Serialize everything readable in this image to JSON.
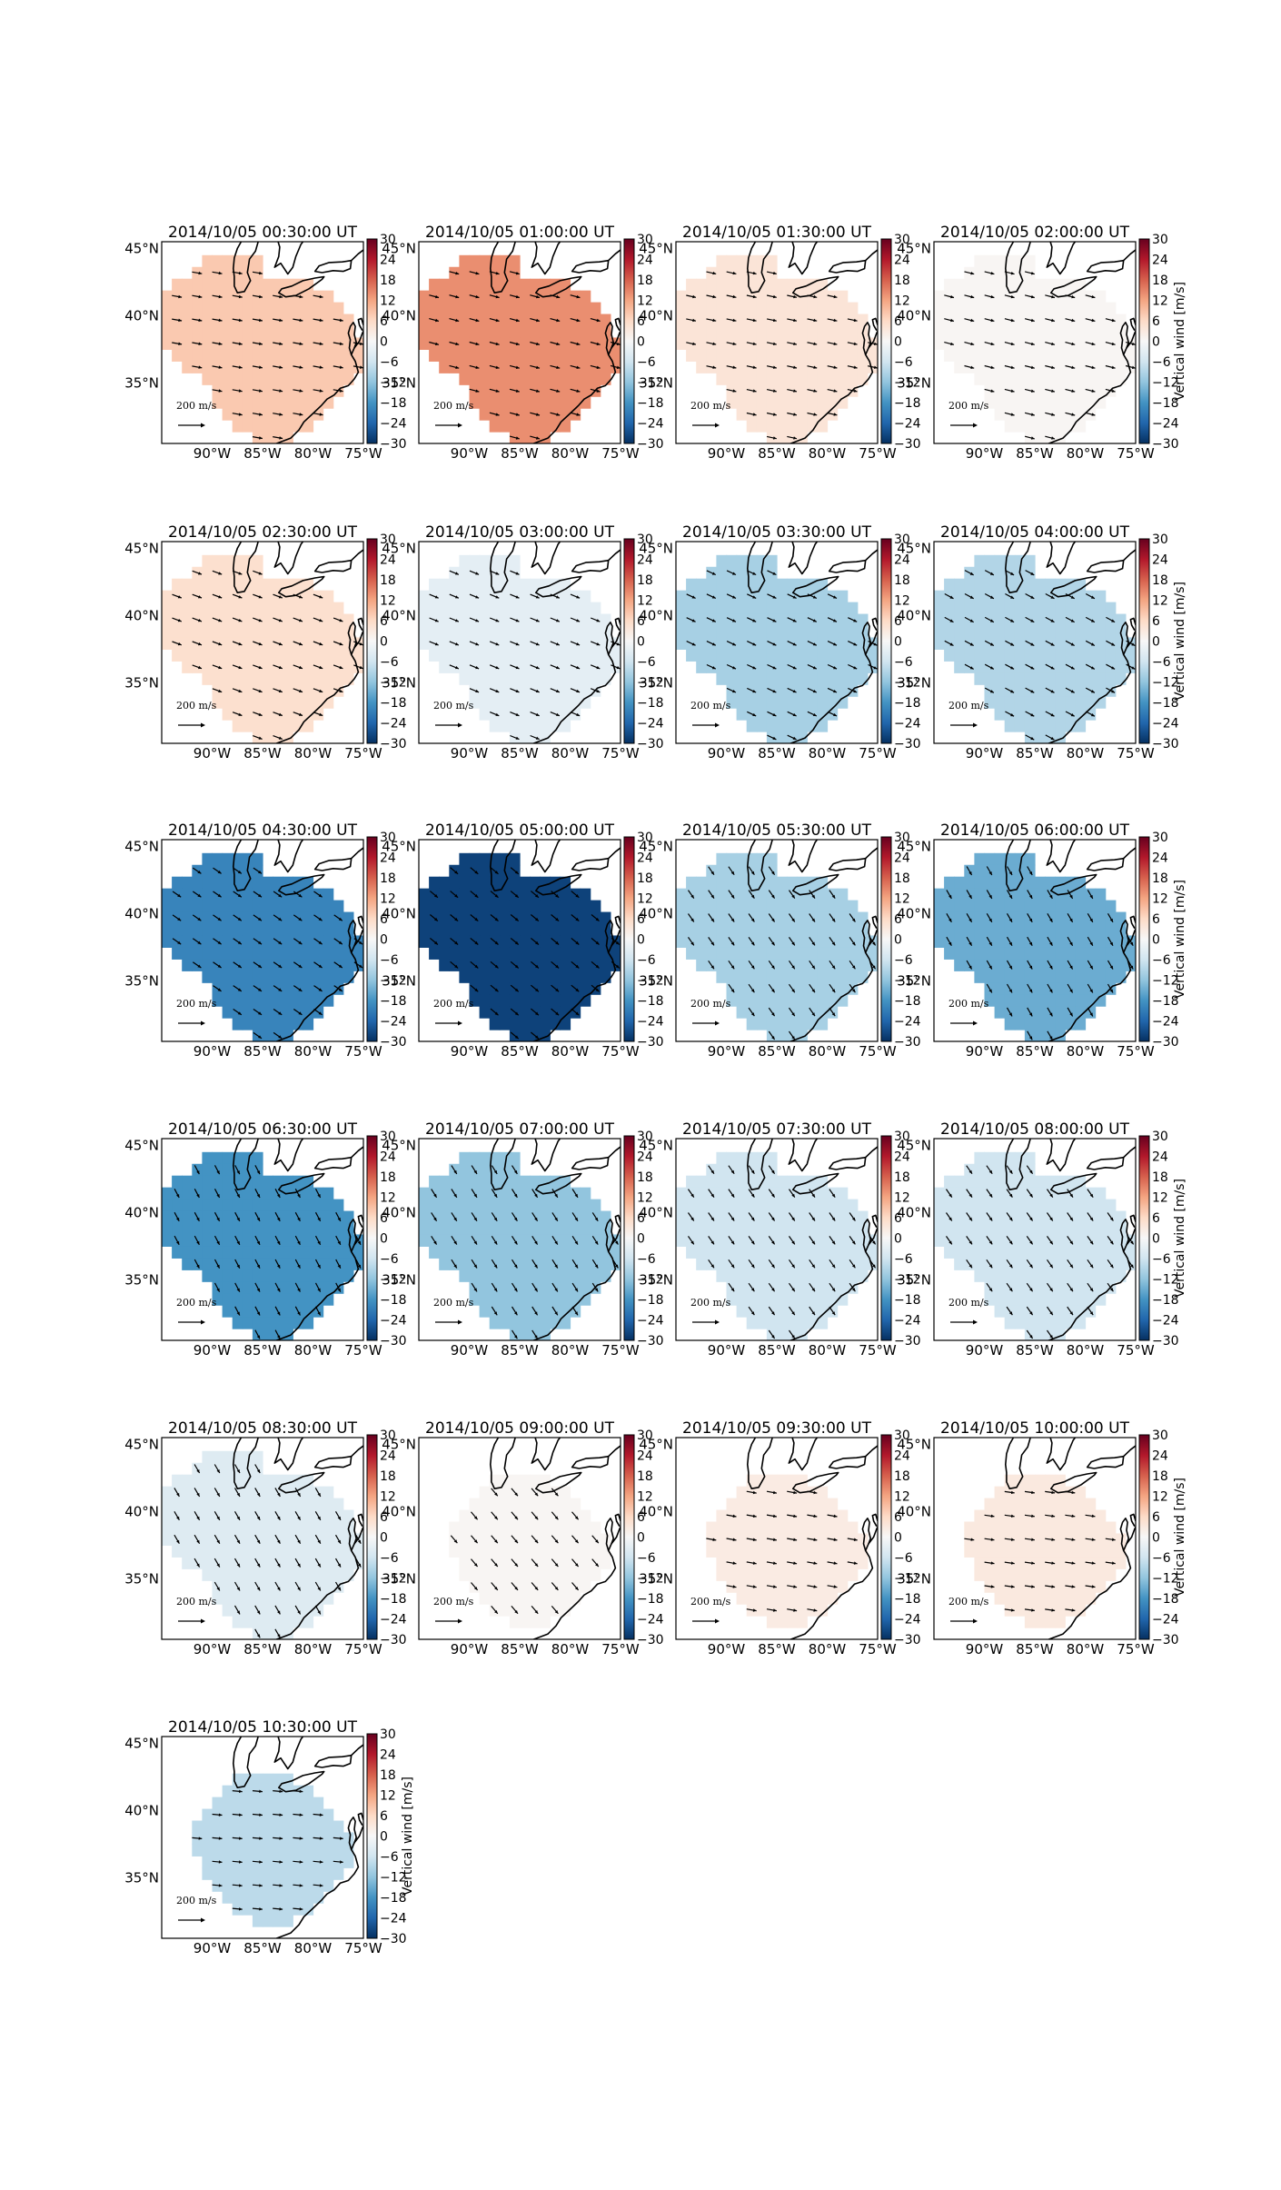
{
  "figure": {
    "colorbar_label": "Vertical wind [m/s]",
    "colorbar_ticks": [
      -30,
      -24,
      -18,
      -12,
      -6,
      0,
      6,
      12,
      18,
      24,
      30
    ],
    "lat_ticks": [
      "45°N",
      "40°N",
      "35°N"
    ],
    "lon_ticks": [
      "90°W",
      "85°W",
      "80°W",
      "75°W"
    ],
    "quiver_key": "200 m/s",
    "colormap": [
      "#053061",
      "#2166ac",
      "#4393c3",
      "#92c5de",
      "#d1e5f0",
      "#f7f7f7",
      "#fddbc7",
      "#f4a582",
      "#d6604d",
      "#b2182b",
      "#67001f"
    ]
  },
  "chart_data": {
    "type": "map",
    "xlabel": "",
    "ylabel": "Vertical wind [m/s]",
    "vlim": [
      -30,
      30
    ],
    "panels": [
      {
        "title": "2014/10/05 00:30:00 UT",
        "value": 8,
        "region": "full",
        "arrow_dir": 10
      },
      {
        "title": "2014/10/05 01:00:00 UT",
        "value": 14,
        "region": "full",
        "arrow_dir": 15
      },
      {
        "title": "2014/10/05 01:30:00 UT",
        "value": 4,
        "region": "full",
        "arrow_dir": 12
      },
      {
        "title": "2014/10/05 02:00:00 UT",
        "value": 0.5,
        "region": "full",
        "arrow_dir": 14
      },
      {
        "title": "2014/10/05 02:30:00 UT",
        "value": 5,
        "region": "full",
        "arrow_dir": 20
      },
      {
        "title": "2014/10/05 03:00:00 UT",
        "value": -3,
        "region": "full",
        "arrow_dir": 22
      },
      {
        "title": "2014/10/05 03:30:00 UT",
        "value": -10,
        "region": "full",
        "arrow_dir": 25
      },
      {
        "title": "2014/10/05 04:00:00 UT",
        "value": -9,
        "region": "full",
        "arrow_dir": 28
      },
      {
        "title": "2014/10/05 04:30:00 UT",
        "value": -20,
        "region": "full",
        "arrow_dir": 35
      },
      {
        "title": "2014/10/05 05:00:00 UT",
        "value": -28,
        "region": "full",
        "arrow_dir": 40
      },
      {
        "title": "2014/10/05 05:30:00 UT",
        "value": -10,
        "region": "full",
        "arrow_dir": 55
      },
      {
        "title": "2014/10/05 06:00:00 UT",
        "value": -15,
        "region": "full",
        "arrow_dir": 60
      },
      {
        "title": "2014/10/05 06:30:00 UT",
        "value": -18,
        "region": "full",
        "arrow_dir": 62
      },
      {
        "title": "2014/10/05 07:00:00 UT",
        "value": -12,
        "region": "full",
        "arrow_dir": 58
      },
      {
        "title": "2014/10/05 07:30:00 UT",
        "value": -6,
        "region": "full",
        "arrow_dir": 55
      },
      {
        "title": "2014/10/05 08:00:00 UT",
        "value": -6,
        "region": "full",
        "arrow_dir": 55
      },
      {
        "title": "2014/10/05 08:30:00 UT",
        "value": -4,
        "region": "full",
        "arrow_dir": 60
      },
      {
        "title": "2014/10/05 09:00:00 UT",
        "value": 0.5,
        "region": "small",
        "arrow_dir": 50
      },
      {
        "title": "2014/10/05 09:30:00 UT",
        "value": 2.5,
        "region": "small",
        "arrow_dir": 10
      },
      {
        "title": "2014/10/05 10:00:00 UT",
        "value": 3,
        "region": "small",
        "arrow_dir": 8
      },
      {
        "title": "2014/10/05 10:30:00 UT",
        "value": -8,
        "region": "small",
        "arrow_dir": 5
      }
    ]
  }
}
